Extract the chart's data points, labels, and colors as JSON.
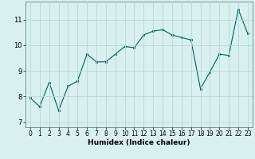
{
  "xlabel": "Humidex (Indice chaleur)",
  "x": [
    0,
    1,
    2,
    3,
    4,
    5,
    6,
    7,
    8,
    9,
    10,
    11,
    12,
    13,
    14,
    15,
    16,
    17,
    18,
    19,
    20,
    21,
    22,
    23
  ],
  "y": [
    7.95,
    7.6,
    8.55,
    7.45,
    8.4,
    8.6,
    9.65,
    9.35,
    9.35,
    9.65,
    9.95,
    9.9,
    10.4,
    10.55,
    10.6,
    10.4,
    10.3,
    10.2,
    8.3,
    8.95,
    9.65,
    9.6,
    11.4,
    10.45
  ],
  "line_color": "#006060",
  "marker_color": "#006060",
  "bg_color": "#d8f0f0",
  "grid_color": "#b8d8d8",
  "ylim": [
    6.8,
    11.7
  ],
  "xlim": [
    -0.5,
    23.5
  ],
  "yticks": [
    7,
    8,
    9,
    10,
    11
  ],
  "xticks": [
    0,
    1,
    2,
    3,
    4,
    5,
    6,
    7,
    8,
    9,
    10,
    11,
    12,
    13,
    14,
    15,
    16,
    17,
    18,
    19,
    20,
    21,
    22,
    23
  ],
  "tick_fontsize": 5.5,
  "xlabel_fontsize": 6.5
}
